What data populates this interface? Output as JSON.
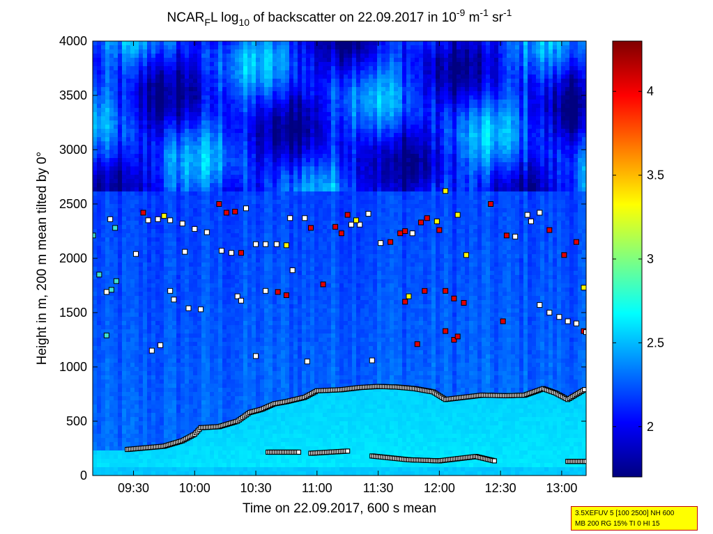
{
  "chart_data": {
    "type": "heatmap",
    "title": {
      "part1": "NCAR",
      "sub1": "F",
      "part2": "L log",
      "sub2": "10",
      "part3": " of backscatter on 22.09.2017 in 10",
      "sup1": "-9",
      "part4": " m",
      "sup2": "-1",
      "part5": " sr",
      "sup3": "-1"
    },
    "xlabel": "Time on 22.09.2017, 600 s mean",
    "ylabel": "Height in m, 200 m mean tilted by 0°",
    "x_range_hours": [
      9.1667,
      13.2
    ],
    "y_range": [
      0,
      4000
    ],
    "x_ticks": [
      {
        "value": 9.5,
        "label": "09:30"
      },
      {
        "value": 10.0,
        "label": "10:00"
      },
      {
        "value": 10.5,
        "label": "10:30"
      },
      {
        "value": 11.0,
        "label": "11:00"
      },
      {
        "value": 11.5,
        "label": "11:30"
      },
      {
        "value": 12.0,
        "label": "12:00"
      },
      {
        "value": 12.5,
        "label": "12:30"
      },
      {
        "value": 13.0,
        "label": "13:00"
      }
    ],
    "y_ticks": [
      {
        "value": 0,
        "label": "0"
      },
      {
        "value": 500,
        "label": "500"
      },
      {
        "value": 1000,
        "label": "1000"
      },
      {
        "value": 1500,
        "label": "1500"
      },
      {
        "value": 2000,
        "label": "2000"
      },
      {
        "value": 2500,
        "label": "2500"
      },
      {
        "value": 3000,
        "label": "3000"
      },
      {
        "value": 3500,
        "label": "3500"
      },
      {
        "value": 4000,
        "label": "4000"
      }
    ],
    "colorbar": {
      "range": [
        1.7,
        4.3
      ],
      "colormap": "jet",
      "ticks": [
        {
          "value": 2.0,
          "label": "2"
        },
        {
          "value": 2.5,
          "label": "2.5"
        },
        {
          "value": 3.0,
          "label": "3"
        },
        {
          "value": 3.5,
          "label": "3.5"
        },
        {
          "value": 4.0,
          "label": "4"
        }
      ]
    },
    "boundary_layer_top": [
      [
        9.45,
        240
      ],
      [
        9.6,
        255
      ],
      [
        9.75,
        270
      ],
      [
        9.9,
        320
      ],
      [
        10.0,
        380
      ],
      [
        10.05,
        440
      ],
      [
        10.2,
        450
      ],
      [
        10.35,
        500
      ],
      [
        10.45,
        580
      ],
      [
        10.55,
        610
      ],
      [
        10.65,
        660
      ],
      [
        10.75,
        680
      ],
      [
        10.9,
        720
      ],
      [
        11.0,
        780
      ],
      [
        11.2,
        790
      ],
      [
        11.35,
        810
      ],
      [
        11.5,
        820
      ],
      [
        11.65,
        815
      ],
      [
        11.8,
        800
      ],
      [
        11.95,
        770
      ],
      [
        12.05,
        700
      ],
      [
        12.2,
        720
      ],
      [
        12.35,
        740
      ],
      [
        12.55,
        735
      ],
      [
        12.7,
        740
      ],
      [
        12.85,
        800
      ],
      [
        12.95,
        760
      ],
      [
        13.05,
        700
      ],
      [
        13.2,
        800
      ]
    ],
    "lower_layer_segments": [
      [
        [
          10.6,
          215
        ],
        [
          10.85,
          215
        ]
      ],
      [
        [
          10.95,
          205
        ],
        [
          11.25,
          225
        ]
      ],
      [
        [
          11.45,
          180
        ],
        [
          11.75,
          145
        ],
        [
          12.0,
          135
        ],
        [
          12.15,
          155
        ],
        [
          12.3,
          175
        ],
        [
          12.45,
          135
        ]
      ],
      [
        [
          13.05,
          130
        ],
        [
          13.2,
          130
        ]
      ]
    ],
    "cloud_points": [
      [
        9.17,
        2210,
        "c"
      ],
      [
        9.22,
        1850,
        "c"
      ],
      [
        9.28,
        1690,
        "w"
      ],
      [
        9.32,
        1710,
        "c"
      ],
      [
        9.36,
        1790,
        "c"
      ],
      [
        9.28,
        1290,
        "c"
      ],
      [
        9.31,
        2360,
        "w"
      ],
      [
        9.35,
        2280,
        "c"
      ],
      [
        9.52,
        2040,
        "w"
      ],
      [
        9.58,
        2420,
        "r"
      ],
      [
        9.62,
        2350,
        "w"
      ],
      [
        9.7,
        2360,
        "w"
      ],
      [
        9.8,
        2350,
        "w"
      ],
      [
        9.9,
        2320,
        "w"
      ],
      [
        9.75,
        2390,
        "y"
      ],
      [
        9.92,
        2060,
        "w"
      ],
      [
        10.0,
        2270,
        "w"
      ],
      [
        10.1,
        2240,
        "w"
      ],
      [
        9.65,
        1150,
        "w"
      ],
      [
        9.72,
        1200,
        "w"
      ],
      [
        9.8,
        1700,
        "w"
      ],
      [
        9.83,
        1620,
        "w"
      ],
      [
        9.95,
        1540,
        "w"
      ],
      [
        10.05,
        1530,
        "w"
      ],
      [
        10.2,
        2500,
        "r"
      ],
      [
        10.26,
        2420,
        "r"
      ],
      [
        10.33,
        2430,
        "r"
      ],
      [
        10.42,
        2460,
        "w"
      ],
      [
        10.22,
        2070,
        "w"
      ],
      [
        10.3,
        2050,
        "w"
      ],
      [
        10.38,
        2050,
        "r"
      ],
      [
        10.5,
        2130,
        "w"
      ],
      [
        10.58,
        2130,
        "w"
      ],
      [
        10.67,
        2130,
        "w"
      ],
      [
        10.75,
        2120,
        "y"
      ],
      [
        10.35,
        1650,
        "w"
      ],
      [
        10.38,
        1610,
        "w"
      ],
      [
        10.5,
        1100,
        "w"
      ],
      [
        10.58,
        1700,
        "w"
      ],
      [
        10.68,
        1690,
        "r"
      ],
      [
        10.75,
        1660,
        "r"
      ],
      [
        10.8,
        1890,
        "w"
      ],
      [
        10.78,
        2370,
        "w"
      ],
      [
        10.9,
        2370,
        "w"
      ],
      [
        10.92,
        1050,
        "w"
      ],
      [
        10.95,
        2280,
        "r"
      ],
      [
        11.05,
        1760,
        "r"
      ],
      [
        11.15,
        2290,
        "r"
      ],
      [
        11.2,
        2230,
        "r"
      ],
      [
        11.28,
        2310,
        "w"
      ],
      [
        11.35,
        2310,
        "w"
      ],
      [
        11.25,
        2400,
        "r"
      ],
      [
        11.32,
        2350,
        "y"
      ],
      [
        11.42,
        2410,
        "w"
      ],
      [
        11.45,
        1060,
        "w"
      ],
      [
        11.52,
        2140,
        "w"
      ],
      [
        11.6,
        2150,
        "r"
      ],
      [
        11.68,
        2230,
        "r"
      ],
      [
        11.72,
        2250,
        "r"
      ],
      [
        11.78,
        2230,
        "w"
      ],
      [
        11.72,
        1600,
        "r"
      ],
      [
        11.75,
        1650,
        "y"
      ],
      [
        11.88,
        1700,
        "r"
      ],
      [
        11.82,
        1210,
        "r"
      ],
      [
        11.85,
        2330,
        "r"
      ],
      [
        11.9,
        2370,
        "r"
      ],
      [
        11.98,
        2340,
        "y"
      ],
      [
        12.0,
        2260,
        "r"
      ],
      [
        12.05,
        1330,
        "r"
      ],
      [
        12.12,
        1250,
        "r"
      ],
      [
        12.15,
        1280,
        "r"
      ],
      [
        12.05,
        1700,
        "r"
      ],
      [
        12.12,
        1630,
        "r"
      ],
      [
        12.2,
        1590,
        "r"
      ],
      [
        12.15,
        2400,
        "y"
      ],
      [
        12.22,
        2030,
        "y"
      ],
      [
        12.42,
        2500,
        "r"
      ],
      [
        12.52,
        1420,
        "r"
      ],
      [
        12.55,
        2210,
        "r"
      ],
      [
        12.62,
        2200,
        "w"
      ],
      [
        12.72,
        2400,
        "w"
      ],
      [
        12.75,
        2340,
        "w"
      ],
      [
        12.82,
        2420,
        "w"
      ],
      [
        12.9,
        2260,
        "r"
      ],
      [
        12.82,
        1570,
        "w"
      ],
      [
        12.9,
        1500,
        "w"
      ],
      [
        12.98,
        1460,
        "w"
      ],
      [
        13.05,
        1420,
        "w"
      ],
      [
        13.12,
        1400,
        "w"
      ],
      [
        13.18,
        1330,
        "r"
      ],
      [
        13.02,
        2030,
        "r"
      ],
      [
        13.12,
        2150,
        "r"
      ],
      [
        13.18,
        1730,
        "y"
      ],
      [
        13.2,
        1320,
        "w"
      ],
      [
        12.05,
        2620,
        "y"
      ]
    ]
  },
  "parameters": {
    "line1": "3.5XEFUV 5 [100 2500] NH 600",
    "line2": "MB 200 RG 15% TI 0 HI 15"
  }
}
